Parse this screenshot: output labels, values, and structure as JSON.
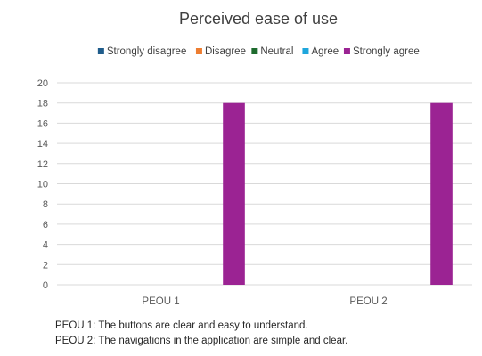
{
  "chart_data": {
    "type": "bar",
    "title": "Perceived ease of use",
    "categories": [
      "PEOU 1",
      "PEOU 2"
    ],
    "series": [
      {
        "name": "Strongly disagree",
        "color": "#1f5c8b",
        "values": [
          0,
          0
        ]
      },
      {
        "name": "Disagree",
        "color": "#ed7d31",
        "values": [
          0,
          0
        ]
      },
      {
        "name": "Neutral",
        "color": "#1e6b2e",
        "values": [
          0,
          0
        ]
      },
      {
        "name": "Agree",
        "color": "#1fa6dc",
        "values": [
          0,
          0
        ]
      },
      {
        "name": "Strongly agree",
        "color": "#9b2393",
        "values": [
          18,
          18
        ]
      }
    ],
    "ylim": [
      0,
      20
    ],
    "yticks": [
      0,
      2,
      4,
      6,
      8,
      10,
      12,
      14,
      16,
      18,
      20
    ],
    "grid": true,
    "legend_position": "top"
  },
  "footnotes": [
    "PEOU 1: The buttons are clear and easy to understand.",
    "PEOU 2: The navigations in the application are simple and clear."
  ]
}
